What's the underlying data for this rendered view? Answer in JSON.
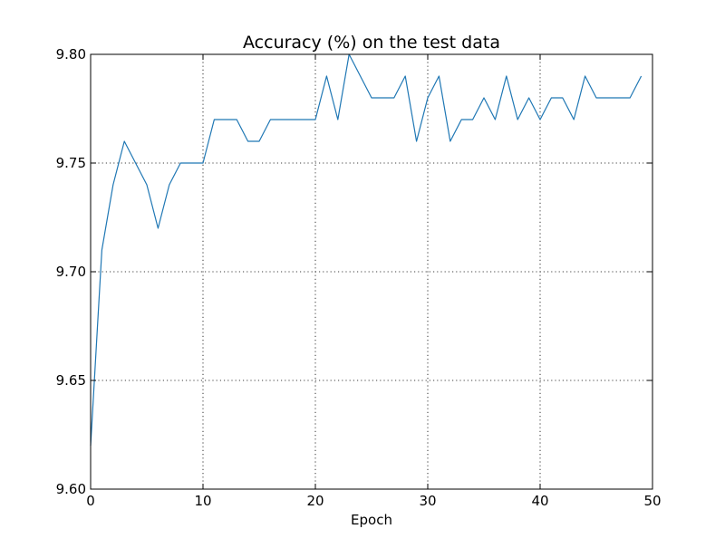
{
  "chart_data": {
    "type": "line",
    "title": "Accuracy (%) on the test data",
    "xlabel": "Epoch",
    "ylabel": "",
    "xlim": [
      0,
      50
    ],
    "ylim": [
      9.6,
      9.8
    ],
    "xticks": [
      0,
      10,
      20,
      30,
      40,
      50
    ],
    "xtick_labels": [
      "0",
      "10",
      "20",
      "30",
      "40",
      "50"
    ],
    "yticks": [
      9.6,
      9.65,
      9.7,
      9.75,
      9.8
    ],
    "ytick_labels": [
      "9.60",
      "9.65",
      "9.70",
      "9.75",
      "9.80"
    ],
    "grid": true,
    "legend": "none",
    "series": [
      {
        "color": "#1f77b4",
        "x": [
          0,
          1,
          2,
          3,
          4,
          5,
          6,
          7,
          8,
          9,
          10,
          11,
          12,
          13,
          14,
          15,
          16,
          17,
          18,
          19,
          20,
          21,
          22,
          23,
          24,
          25,
          26,
          27,
          28,
          29,
          30,
          31,
          32,
          33,
          34,
          35,
          36,
          37,
          38,
          39,
          40,
          41,
          42,
          43,
          44,
          45,
          46,
          47,
          48,
          49
        ],
        "values": [
          9.62,
          9.71,
          9.74,
          9.76,
          9.75,
          9.74,
          9.72,
          9.74,
          9.75,
          9.75,
          9.75,
          9.77,
          9.77,
          9.77,
          9.76,
          9.76,
          9.77,
          9.77,
          9.77,
          9.77,
          9.77,
          9.79,
          9.77,
          9.8,
          9.79,
          9.78,
          9.78,
          9.78,
          9.79,
          9.76,
          9.78,
          9.79,
          9.76,
          9.77,
          9.77,
          9.78,
          9.77,
          9.79,
          9.77,
          9.78,
          9.77,
          9.78,
          9.78,
          9.77,
          9.79,
          9.78,
          9.78,
          9.78,
          9.78,
          9.79
        ]
      }
    ]
  }
}
